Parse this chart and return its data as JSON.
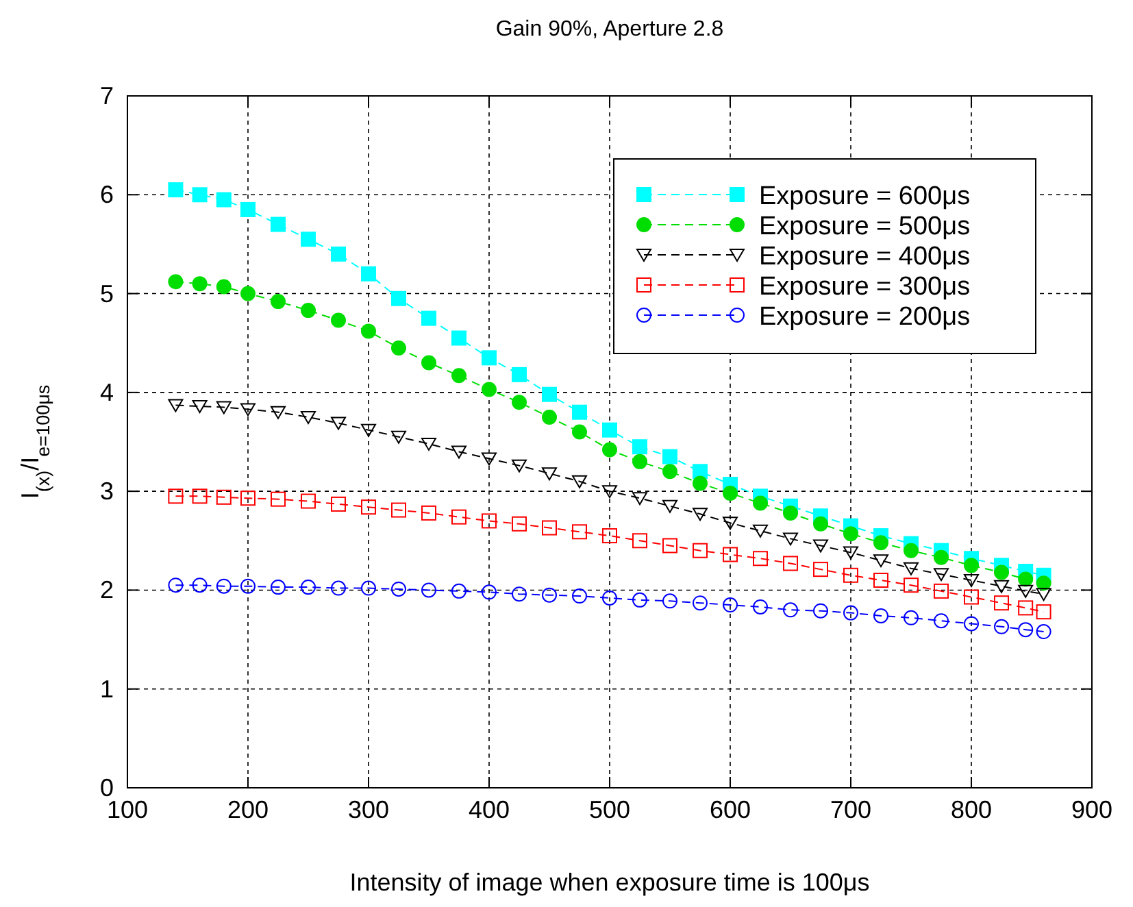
{
  "chart_data": {
    "type": "line",
    "title": "Gain 90%, Aperture 2.8",
    "xlabel": "Intensity of image when exposure time is 100μs",
    "ylabel": "I$_{(x)}$/I$_{e=100μs}$",
    "x": [
      140,
      160,
      180,
      200,
      225,
      250,
      275,
      300,
      325,
      350,
      375,
      400,
      425,
      450,
      475,
      500,
      525,
      550,
      575,
      600,
      625,
      650,
      675,
      700,
      725,
      750,
      775,
      800,
      825,
      845,
      860
    ],
    "series": [
      {
        "name": "Exposure = 600μs",
        "color": "#00ffff",
        "marker": "square",
        "line_style": "dashed",
        "values": [
          6.05,
          6.0,
          5.95,
          5.85,
          5.7,
          5.55,
          5.4,
          5.2,
          4.95,
          4.75,
          4.55,
          4.35,
          4.18,
          3.98,
          3.8,
          3.62,
          3.45,
          3.35,
          3.2,
          3.07,
          2.95,
          2.85,
          2.75,
          2.65,
          2.55,
          2.47,
          2.4,
          2.32,
          2.25,
          2.19,
          2.15
        ]
      },
      {
        "name": "Exposure = 500μs",
        "color": "#00dd00",
        "marker": "circle",
        "line_style": "dashed",
        "values": [
          5.12,
          5.1,
          5.07,
          5.0,
          4.92,
          4.83,
          4.73,
          4.62,
          4.45,
          4.3,
          4.17,
          4.03,
          3.9,
          3.75,
          3.6,
          3.42,
          3.3,
          3.2,
          3.08,
          2.98,
          2.88,
          2.78,
          2.67,
          2.57,
          2.48,
          2.4,
          2.33,
          2.25,
          2.18,
          2.11,
          2.07
        ]
      },
      {
        "name": "Exposure = 400μs",
        "color": "#000000",
        "marker": "triangle",
        "line_style": "dashed",
        "values": [
          3.87,
          3.86,
          3.85,
          3.83,
          3.8,
          3.75,
          3.69,
          3.62,
          3.55,
          3.48,
          3.4,
          3.33,
          3.26,
          3.18,
          3.1,
          3.0,
          2.93,
          2.85,
          2.77,
          2.68,
          2.6,
          2.52,
          2.45,
          2.38,
          2.3,
          2.22,
          2.16,
          2.1,
          2.04,
          1.99,
          1.96
        ]
      },
      {
        "name": "Exposure = 300μs",
        "color": "#ff0000",
        "marker": "square",
        "line_style": "dashed",
        "values": [
          2.95,
          2.95,
          2.94,
          2.93,
          2.92,
          2.9,
          2.87,
          2.84,
          2.81,
          2.78,
          2.74,
          2.7,
          2.67,
          2.63,
          2.59,
          2.55,
          2.5,
          2.45,
          2.4,
          2.36,
          2.32,
          2.27,
          2.21,
          2.15,
          2.1,
          2.05,
          1.99,
          1.93,
          1.87,
          1.82,
          1.78
        ]
      },
      {
        "name": "Exposure = 200μs",
        "color": "#0000ff",
        "marker": "circle",
        "line_style": "dashed",
        "values": [
          2.05,
          2.05,
          2.04,
          2.04,
          2.03,
          2.03,
          2.02,
          2.02,
          2.01,
          2.0,
          1.99,
          1.98,
          1.96,
          1.95,
          1.94,
          1.92,
          1.9,
          1.89,
          1.87,
          1.85,
          1.83,
          1.8,
          1.79,
          1.77,
          1.74,
          1.72,
          1.69,
          1.66,
          1.63,
          1.6,
          1.58
        ]
      }
    ],
    "xlim": [
      100,
      900
    ],
    "xticks": [
      100,
      200,
      300,
      400,
      500,
      600,
      700,
      800,
      900
    ],
    "ylim": [
      0,
      7
    ],
    "yticks": [
      0,
      1,
      2,
      3,
      4,
      5,
      6,
      7
    ],
    "grid": true,
    "legend": "top right"
  }
}
